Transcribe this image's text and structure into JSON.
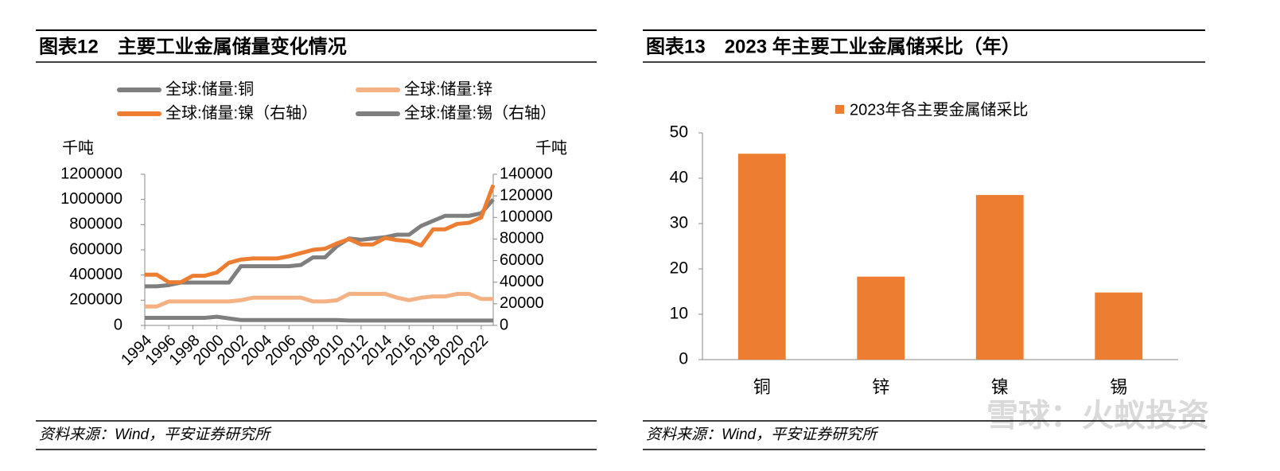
{
  "chart_data": [
    {
      "type": "line",
      "title": "图表12　主要工业金属储量变化情况",
      "source": "资料来源：Wind，平安证券研究所",
      "y_label": "千吨",
      "y2_label": "千吨",
      "x": [
        1994,
        1995,
        1996,
        1997,
        1998,
        1999,
        2000,
        2001,
        2002,
        2003,
        2004,
        2005,
        2006,
        2007,
        2008,
        2009,
        2010,
        2011,
        2012,
        2013,
        2014,
        2015,
        2016,
        2017,
        2018,
        2019,
        2020,
        2021,
        2022,
        2023
      ],
      "xlim": [
        1994,
        2023
      ],
      "xticks": [
        1994,
        1996,
        1998,
        2000,
        2002,
        2004,
        2006,
        2008,
        2010,
        2012,
        2014,
        2016,
        2018,
        2020,
        2022
      ],
      "ylim": [
        0,
        1200000
      ],
      "yticks": [
        0,
        200000,
        400000,
        600000,
        800000,
        1000000,
        1200000
      ],
      "y2lim": [
        0,
        140000
      ],
      "y2ticks": [
        0,
        20000,
        40000,
        60000,
        80000,
        100000,
        120000,
        140000
      ],
      "series": [
        {
          "name": "全球:储量:铜",
          "color": "#7f7f7f",
          "values": [
            310000,
            310000,
            320000,
            340000,
            340000,
            340000,
            340000,
            340000,
            470000,
            470000,
            470000,
            470000,
            470000,
            480000,
            540000,
            540000,
            630000,
            690000,
            680000,
            690000,
            700000,
            720000,
            720000,
            790000,
            830000,
            870000,
            870000,
            870000,
            890000,
            1000000
          ]
        },
        {
          "name": "全球:储量:锌",
          "color": "#f4b183",
          "values": [
            150000,
            150000,
            190000,
            190000,
            190000,
            190000,
            190000,
            190000,
            200000,
            220000,
            220000,
            220000,
            220000,
            220000,
            190000,
            190000,
            200000,
            250000,
            250000,
            250000,
            250000,
            220000,
            200000,
            220000,
            230000,
            230000,
            250000,
            250000,
            210000,
            210000
          ]
        },
        {
          "name": "全球:储量:镍（右轴）",
          "color": "#ed7d31",
          "axis": "y2",
          "values": [
            47000,
            47000,
            40000,
            40000,
            46000,
            46000,
            49000,
            58000,
            61000,
            62000,
            62000,
            62000,
            64000,
            67000,
            70000,
            71000,
            76000,
            80000,
            75000,
            75000,
            81000,
            79000,
            78000,
            74000,
            89000,
            89000,
            94000,
            95000,
            100000,
            130000
          ]
        },
        {
          "name": "全球:储量:锡（右轴）",
          "color": "#7f7f7f",
          "axis": "y2",
          "values": [
            7000,
            7000,
            7000,
            7000,
            7000,
            7000,
            8000,
            6500,
            5000,
            5000,
            5000,
            5000,
            5000,
            5000,
            5000,
            5000,
            5000,
            4500,
            4500,
            4500,
            4500,
            4500,
            4500,
            4500,
            4500,
            4500,
            4500,
            4500,
            4500,
            4500
          ]
        }
      ]
    },
    {
      "type": "bar",
      "title": "图表13　2023 年主要工业金属储采比（年）",
      "source": "资料来源：Wind，平安证券研究所",
      "legend": "2023年各主要金属储采比",
      "categories": [
        "铜",
        "锌",
        "镍",
        "锡"
      ],
      "values": [
        45.4,
        18.3,
        36.3,
        14.8
      ],
      "color": "#ed7d31",
      "ylim": [
        0,
        50
      ],
      "yticks": [
        0,
        10,
        20,
        30,
        40,
        50
      ]
    }
  ],
  "watermark": "雪球：火蚁投资"
}
